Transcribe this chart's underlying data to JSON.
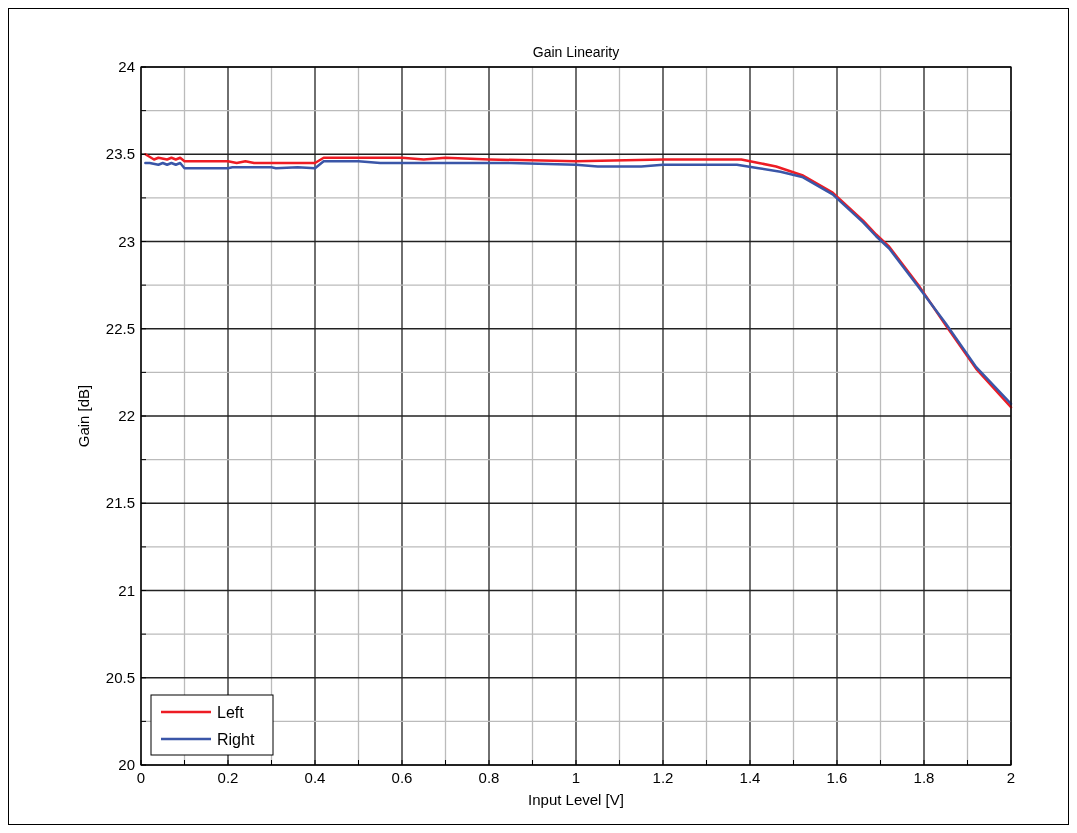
{
  "chart_data": {
    "type": "line",
    "title": "Gain Linearity",
    "xlabel": "Input Level [V]",
    "ylabel": "Gain [dB]",
    "xlim": [
      0,
      2
    ],
    "ylim": [
      20,
      24
    ],
    "xticks": [
      0,
      {
        "value": 0.1,
        "label": null
      },
      0.2,
      {
        "value": 0.3,
        "label": null
      },
      0.4,
      {
        "value": 0.5,
        "label": null
      },
      0.6,
      {
        "value": 0.7,
        "label": null
      },
      0.8,
      {
        "value": 0.9,
        "label": null
      },
      1,
      {
        "value": 1.1,
        "label": null
      },
      1.2,
      {
        "value": 1.3,
        "label": null
      },
      1.4,
      {
        "value": 1.5,
        "label": null
      },
      1.6,
      {
        "value": 1.7,
        "label": null
      },
      1.8,
      {
        "value": 1.9,
        "label": null
      },
      2
    ],
    "yticks": [
      20,
      {
        "value": 20.25,
        "label": null
      },
      20.5,
      {
        "value": 20.75,
        "label": null
      },
      21,
      {
        "value": 21.25,
        "label": null
      },
      21.5,
      {
        "value": 21.75,
        "label": null
      },
      22,
      {
        "value": 22.25,
        "label": null
      },
      22.5,
      {
        "value": 22.75,
        "label": null
      },
      23,
      {
        "value": 23.25,
        "label": null
      },
      23.5,
      {
        "value": 23.75,
        "label": null
      },
      24
    ],
    "grid": true,
    "legend": "bottom left",
    "series": [
      {
        "name": "Left",
        "color": "#ed1c24",
        "x": [
          0.01,
          0.03,
          0.04,
          0.06,
          0.07,
          0.08,
          0.09,
          0.1,
          0.2,
          0.22,
          0.24,
          0.26,
          0.4,
          0.42,
          0.6,
          0.65,
          0.7,
          0.8,
          1.0,
          1.2,
          1.38,
          1.42,
          1.46,
          1.52,
          1.59,
          1.66,
          1.69,
          1.72,
          1.79,
          1.85,
          1.92,
          2.0
        ],
        "values": [
          23.5,
          23.47,
          23.48,
          23.47,
          23.48,
          23.47,
          23.48,
          23.46,
          23.46,
          23.45,
          23.46,
          23.45,
          23.45,
          23.48,
          23.48,
          23.47,
          23.48,
          23.47,
          23.46,
          23.47,
          23.47,
          23.45,
          23.43,
          23.38,
          23.28,
          23.12,
          23.04,
          22.97,
          22.74,
          22.52,
          22.27,
          22.05
        ]
      },
      {
        "name": "Right",
        "color": "#3a56a8",
        "x": [
          0.01,
          0.02,
          0.04,
          0.05,
          0.06,
          0.07,
          0.08,
          0.09,
          0.1,
          0.2,
          0.21,
          0.3,
          0.31,
          0.36,
          0.4,
          0.42,
          0.5,
          0.55,
          0.85,
          1.0,
          1.05,
          1.15,
          1.2,
          1.37,
          1.42,
          1.47,
          1.52,
          1.59,
          1.66,
          1.69,
          1.72,
          1.79,
          1.85,
          1.92,
          2.0
        ],
        "values": [
          23.45,
          23.45,
          23.44,
          23.45,
          23.44,
          23.45,
          23.44,
          23.45,
          23.42,
          23.42,
          23.425,
          23.425,
          23.42,
          23.425,
          23.42,
          23.46,
          23.46,
          23.45,
          23.45,
          23.44,
          23.43,
          23.43,
          23.44,
          23.44,
          23.42,
          23.4,
          23.37,
          23.27,
          23.11,
          23.03,
          22.96,
          22.73,
          22.53,
          22.28,
          22.07
        ]
      }
    ]
  }
}
